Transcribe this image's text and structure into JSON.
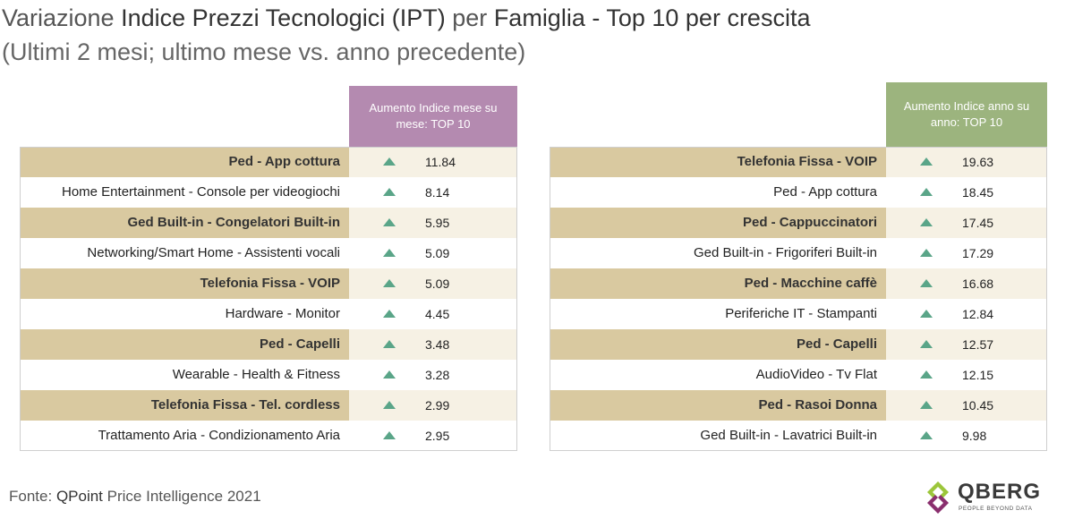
{
  "title": {
    "part1": "Variazione",
    "part2": "Indice Prezzi Tecnologici (IPT)",
    "part3": "per",
    "part4": "Famiglia - Top 10 per crescita"
  },
  "subtitle": "(Ultimi 2 mesi; ultimo mese vs. anno precedente)",
  "colors": {
    "purple": "#b48ab0",
    "green": "#9cb47e",
    "tan": "#d9c9a0",
    "arrow": "#5aa588"
  },
  "chart_data": [
    {
      "type": "table",
      "title": "Aumento Indice mese su mese: TOP 10",
      "categories": [
        "Ped - App cottura",
        "Home Entertainment - Console per videogiochi",
        "Ged Built-in - Congelatori Built-in",
        "Networking/Smart Home - Assistenti vocali",
        "Telefonia Fissa - VOIP",
        "Hardware - Monitor",
        "Ped - Capelli",
        "Wearable - Health & Fitness",
        "Telefonia Fissa - Tel. cordless",
        "Trattamento Aria - Condizionamento Aria"
      ],
      "values": [
        "11.84",
        "8.14",
        "5.95",
        "5.09",
        "5.09",
        "4.45",
        "3.48",
        "3.28",
        "2.99",
        "2.95"
      ],
      "trend": [
        "up",
        "up",
        "up",
        "up",
        "up",
        "up",
        "up",
        "up",
        "up",
        "up"
      ]
    },
    {
      "type": "table",
      "title": "Aumento Indice anno su anno: TOP 10",
      "categories": [
        "Telefonia Fissa - VOIP",
        "Ped - App cottura",
        "Ped - Cappuccinatori",
        "Ged Built-in - Frigoriferi Built-in",
        "Ped - Macchine caffè",
        "Periferiche IT - Stampanti",
        "Ped - Capelli",
        "AudioVideo - Tv Flat",
        "Ped - Rasoi Donna",
        "Ged Built-in - Lavatrici Built-in"
      ],
      "values": [
        "19.63",
        "18.45",
        "17.45",
        "17.29",
        "16.68",
        "12.84",
        "12.57",
        "12.15",
        "10.45",
        "9.98"
      ],
      "trend": [
        "up",
        "up",
        "up",
        "up",
        "up",
        "up",
        "up",
        "up",
        "up",
        "up"
      ]
    }
  ],
  "source": {
    "label": "Fonte:",
    "brand": "QPoint",
    "rest": "Price Intelligence 2021"
  },
  "logo": {
    "name": "QBERG",
    "tagline": "PEOPLE BEYOND DATA"
  }
}
